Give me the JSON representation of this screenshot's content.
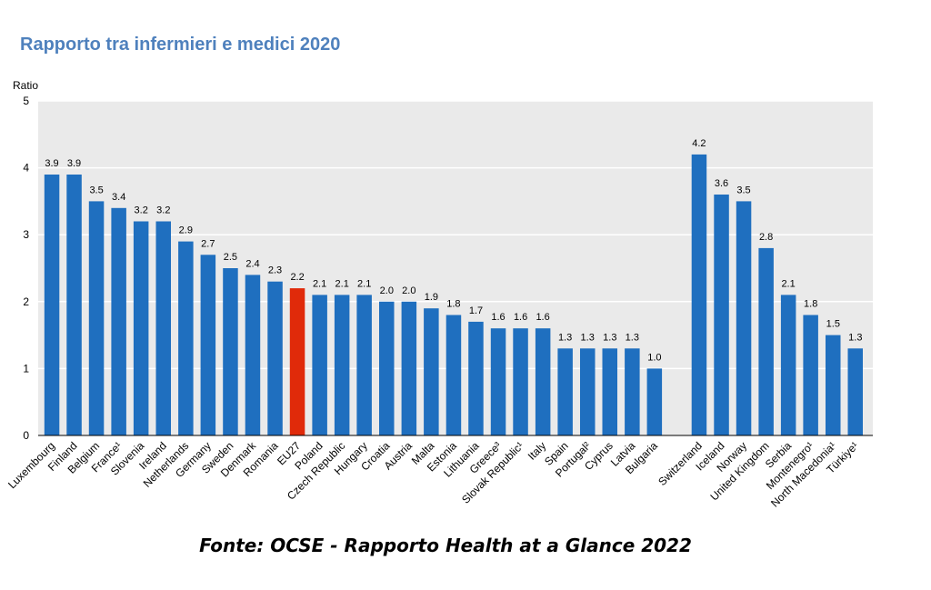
{
  "title": "Rapporto tra infermieri e medici 2020",
  "source": "Fonte: OCSE - Rapporto Health at a Glance 2022",
  "colors": {
    "bar": "#1f6fbf",
    "highlight": "#e02a0a",
    "plot_bg": "#eaeaea",
    "grid": "#ffffff"
  },
  "chart_data": {
    "type": "bar",
    "ylabel": "Ratio",
    "ylim": [
      0,
      5
    ],
    "yticks": [
      0,
      1,
      2,
      3,
      4,
      5
    ],
    "grid": true,
    "categories": [
      "Luxembourg",
      "Finland",
      "Belgium",
      "France¹",
      "Slovenia",
      "Ireland",
      "Netherlands",
      "Germany",
      "Sweden",
      "Denmark",
      "Romania",
      "EU27",
      "Poland",
      "Czech Republic",
      "Hungary",
      "Croatia",
      "Austria",
      "Malta",
      "Estonia",
      "Lithuania",
      "Greece³",
      "Slovak Republic¹",
      "Italy",
      "Spain",
      "Portugal²",
      "Cyprus",
      "Latvia",
      "Bulgaria",
      "Switzerland",
      "Iceland",
      "Norway",
      "United Kingdom",
      "Serbia",
      "Montenegro¹",
      "North Macedonia¹",
      "Türkiye¹"
    ],
    "values": [
      3.9,
      3.9,
      3.5,
      3.4,
      3.2,
      3.2,
      2.9,
      2.7,
      2.5,
      2.4,
      2.3,
      2.2,
      2.1,
      2.1,
      2.1,
      2.0,
      2.0,
      1.9,
      1.8,
      1.7,
      1.6,
      1.6,
      1.6,
      1.3,
      1.3,
      1.3,
      1.3,
      1.0,
      4.2,
      3.6,
      3.5,
      2.8,
      2.1,
      1.8,
      1.5,
      1.3
    ],
    "data_labels": [
      "3.9",
      "3.9",
      "3.5",
      "3.4",
      "3.2",
      "3.2",
      "2.9",
      "2.7",
      "2.5",
      "2.4",
      "2.3",
      "2.2",
      "2.1",
      "2.1",
      "2.1",
      "2.0",
      "2.0",
      "1.9",
      "1.8",
      "1.7",
      "1.6",
      "1.6",
      "1.6",
      "1.3",
      "1.3",
      "1.3",
      "1.3",
      "1.0",
      "4.2",
      "3.6",
      "3.5",
      "2.8",
      "2.1",
      "1.8",
      "1.5",
      "1.3"
    ],
    "highlight": "EU27"
  }
}
